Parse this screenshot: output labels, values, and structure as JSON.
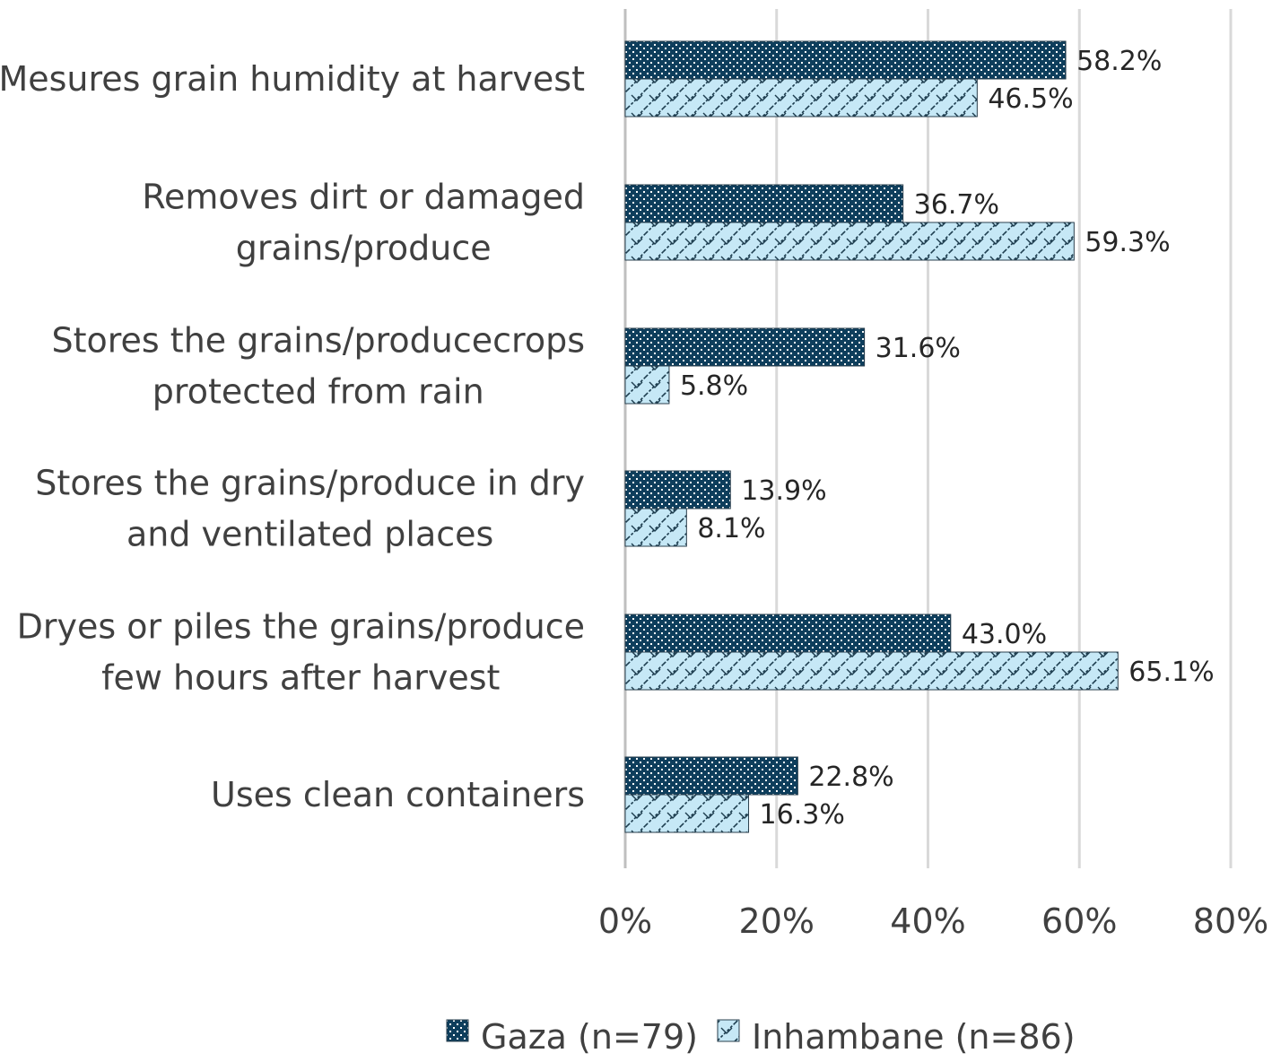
{
  "chart_data": {
    "type": "bar",
    "orientation": "horizontal",
    "categories": [
      [
        "Mesures grain humidity at harvest"
      ],
      [
        "Removes dirt or damaged",
        "grains/produce"
      ],
      [
        "Stores the grains/producecrops",
        "protected from rain"
      ],
      [
        "Stores the grains/produce in dry",
        "and ventilated places"
      ],
      [
        "Dryes or piles the grains/produce",
        "few hours after harvest"
      ],
      [
        "Uses clean containers"
      ]
    ],
    "series": [
      {
        "name": "Gaza (n=79)",
        "values": [
          58.2,
          36.7,
          31.6,
          13.9,
          43.0,
          22.8
        ],
        "labels": [
          "58.2%",
          "36.7%",
          "31.6%",
          "13.9%",
          "43.0%",
          "22.8%"
        ],
        "color": "#0e3e5c",
        "pattern": "dots"
      },
      {
        "name": "Inhambane (n=86)",
        "values": [
          46.5,
          59.3,
          5.8,
          8.1,
          65.1,
          16.3
        ],
        "labels": [
          "46.5%",
          "59.3%",
          "5.8%",
          "8.1%",
          "65.1%",
          "16.3%"
        ],
        "color": "#c6e8f6",
        "pattern": "zigzag"
      }
    ],
    "xlim": [
      0,
      80
    ],
    "xticks": [
      0,
      20,
      40,
      60,
      80
    ],
    "xtick_labels": [
      "0%",
      "20%",
      "40%",
      "60%",
      "80%"
    ],
    "grid": "vertical",
    "legend": "bottom"
  }
}
